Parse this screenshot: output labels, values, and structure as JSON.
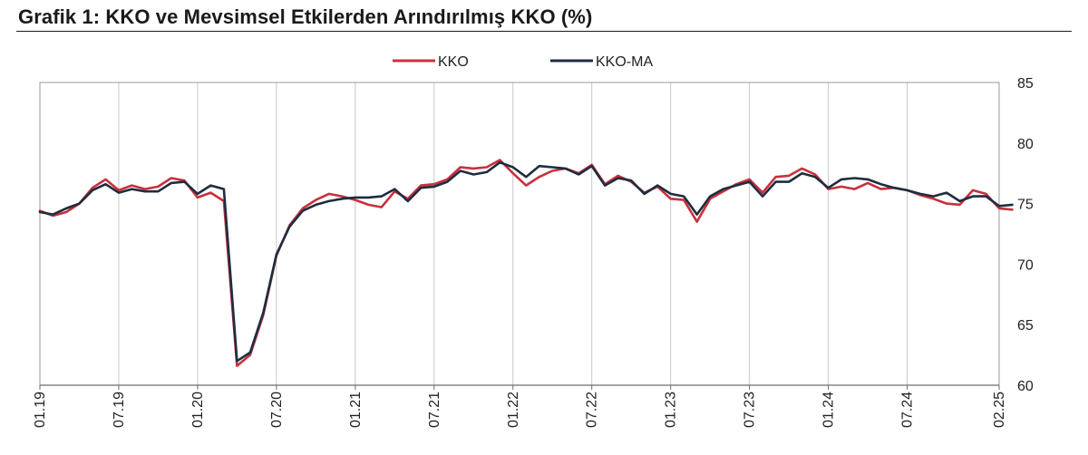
{
  "header": {
    "title": "Grafik 1: KKO ve Mevsimsel Etkilerden Arındırılmış KKO (%)"
  },
  "chart_data": {
    "type": "line",
    "title": "Grafik 1: KKO ve Mevsimsel Etkilerden Arındırılmış KKO (%)",
    "xlabel": "",
    "ylabel": "",
    "ylim": [
      60,
      85
    ],
    "yticks": [
      "60",
      "65",
      "70",
      "75",
      "80",
      "85"
    ],
    "ytick_values": [
      60,
      65,
      70,
      75,
      80,
      85
    ],
    "x_tick_labels": [
      "01.19",
      "07.19",
      "01.20",
      "07.20",
      "01.21",
      "07.21",
      "01.22",
      "07.22",
      "01.23",
      "07.23",
      "01.24",
      "07.24",
      "02.25"
    ],
    "x_tick_months": [
      "2019-01",
      "2019-07",
      "2020-01",
      "2020-07",
      "2021-01",
      "2021-07",
      "2022-01",
      "2022-07",
      "2023-01",
      "2023-07",
      "2024-01",
      "2024-07",
      "2025-02"
    ],
    "x_start": "2019-01",
    "x_end": "2025-02",
    "legend_position": "top-center",
    "grid": "vertical",
    "series": [
      {
        "name": "KKO",
        "color": "#c8303c",
        "values": [
          74.4,
          74.0,
          74.3,
          75.0,
          76.3,
          77.0,
          76.1,
          76.5,
          76.2,
          76.4,
          77.1,
          76.9,
          75.5,
          75.9,
          75.2,
          61.6,
          62.5,
          65.8,
          70.7,
          73.2,
          74.6,
          75.3,
          75.8,
          75.6,
          75.3,
          74.9,
          74.7,
          76.0,
          75.4,
          76.5,
          76.6,
          77.0,
          78.0,
          77.9,
          78.0,
          78.6,
          77.5,
          76.5,
          77.2,
          77.7,
          77.9,
          77.5,
          78.2,
          76.6,
          77.3,
          76.8,
          75.9,
          76.4,
          75.4,
          75.3,
          73.5,
          75.4,
          76.0,
          76.6,
          77.0,
          75.9,
          77.2,
          77.3,
          77.9,
          77.4,
          76.2,
          76.4,
          76.2,
          76.7,
          76.2,
          76.3,
          76.1,
          75.7,
          75.4,
          75.0,
          74.9,
          76.1,
          75.8,
          74.6,
          74.5
        ]
      },
      {
        "name": "KKO-MA",
        "color": "#1e2d3f",
        "values": [
          74.3,
          74.1,
          74.6,
          75.0,
          76.1,
          76.6,
          75.9,
          76.2,
          76.0,
          76.0,
          76.7,
          76.8,
          75.8,
          76.5,
          76.2,
          62.0,
          62.7,
          66.0,
          70.8,
          73.1,
          74.4,
          74.9,
          75.2,
          75.4,
          75.5,
          75.5,
          75.6,
          76.2,
          75.2,
          76.3,
          76.4,
          76.8,
          77.7,
          77.4,
          77.6,
          78.4,
          78.0,
          77.2,
          78.1,
          78.0,
          77.9,
          77.4,
          78.1,
          76.5,
          77.1,
          76.9,
          75.8,
          76.5,
          75.8,
          75.6,
          74.1,
          75.6,
          76.2,
          76.5,
          76.8,
          75.6,
          76.8,
          76.8,
          77.5,
          77.2,
          76.3,
          77.0,
          77.1,
          77.0,
          76.6,
          76.3,
          76.1,
          75.8,
          75.6,
          75.9,
          75.2,
          75.6,
          75.6,
          74.8,
          74.9
        ]
      }
    ]
  }
}
